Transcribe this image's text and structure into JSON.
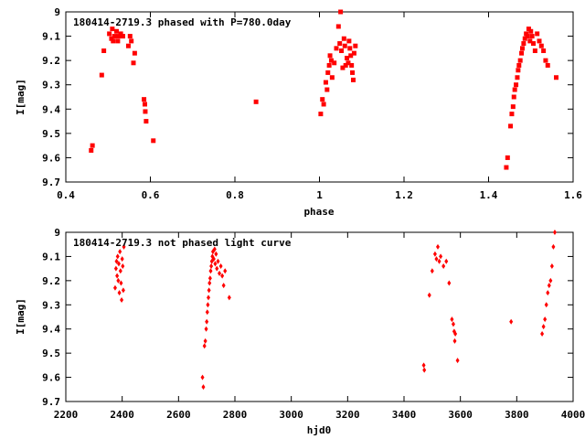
{
  "chart_data": [
    {
      "type": "scatter",
      "title": "180414-2719.3 phased with P=780.0day",
      "xlabel": "phase",
      "ylabel": "I[mag]",
      "xlim": [
        0.4,
        1.6
      ],
      "ylim": [
        9.7,
        9.0
      ],
      "y_inverted": true,
      "x_ticks": [
        "0.4",
        "0.6",
        "0.8",
        "1",
        "1.2",
        "1.4",
        "1.6"
      ],
      "x_tick_values": [
        0.4,
        0.6,
        0.8,
        1.0,
        1.2,
        1.4,
        1.6
      ],
      "y_ticks": [
        "9",
        "9.1",
        "9.2",
        "9.3",
        "9.4",
        "9.5",
        "9.6",
        "9.7"
      ],
      "y_tick_values": [
        9.0,
        9.1,
        9.2,
        9.3,
        9.4,
        9.5,
        9.6,
        9.7
      ],
      "marker": "square",
      "color": "#ff0000",
      "x": [
        0.46,
        0.463,
        0.485,
        0.49,
        0.503,
        0.508,
        0.51,
        0.512,
        0.515,
        0.52,
        0.523,
        0.525,
        0.53,
        0.535,
        0.548,
        0.552,
        0.555,
        0.56,
        0.563,
        0.585,
        0.587,
        0.588,
        0.59,
        0.607,
        0.85,
        1.003,
        1.007,
        1.01,
        1.015,
        1.018,
        1.02,
        1.023,
        1.025,
        1.028,
        1.03,
        1.035,
        1.04,
        1.045,
        1.048,
        1.05,
        1.052,
        1.055,
        1.058,
        1.06,
        1.062,
        1.065,
        1.068,
        1.07,
        1.072,
        1.074,
        1.076,
        1.078,
        1.08,
        1.082,
        1.085,
        1.442,
        1.445,
        1.452,
        1.455,
        1.458,
        1.46,
        1.462,
        1.465,
        1.468,
        1.47,
        1.472,
        1.475,
        1.478,
        1.48,
        1.483,
        1.486,
        1.489,
        1.492,
        1.495,
        1.498,
        1.5,
        1.503,
        1.506,
        1.51,
        1.515,
        1.52,
        1.525,
        1.53,
        1.535,
        1.54,
        1.56
      ],
      "y": [
        9.57,
        9.55,
        9.26,
        9.16,
        9.09,
        9.11,
        9.07,
        9.12,
        9.1,
        9.08,
        9.12,
        9.1,
        9.09,
        9.1,
        9.14,
        9.1,
        9.12,
        9.21,
        9.17,
        9.36,
        9.38,
        9.41,
        9.45,
        9.53,
        9.37,
        9.42,
        9.36,
        9.38,
        9.29,
        9.32,
        9.25,
        9.22,
        9.18,
        9.2,
        9.27,
        9.21,
        9.15,
        9.06,
        9.13,
        9.0,
        9.16,
        9.23,
        9.11,
        9.14,
        9.22,
        9.19,
        9.21,
        9.12,
        9.15,
        9.18,
        9.22,
        9.25,
        9.28,
        9.17,
        9.14,
        9.64,
        9.6,
        9.47,
        9.42,
        9.39,
        9.35,
        9.32,
        9.3,
        9.27,
        9.24,
        9.22,
        9.2,
        9.17,
        9.15,
        9.13,
        9.11,
        9.09,
        9.1,
        9.07,
        9.12,
        9.08,
        9.1,
        9.13,
        9.16,
        9.09,
        9.12,
        9.14,
        9.16,
        9.2,
        9.22,
        9.27
      ]
    },
    {
      "type": "scatter",
      "title": "180414-2719.3 not phased light curve",
      "xlabel": "hjd0",
      "ylabel": "I[mag]",
      "xlim": [
        2200,
        4000
      ],
      "ylim": [
        9.7,
        9.0
      ],
      "y_inverted": true,
      "x_ticks": [
        "2200",
        "2400",
        "2600",
        "2800",
        "3000",
        "3200",
        "3400",
        "3600",
        "3800",
        "4000"
      ],
      "x_tick_values": [
        2200,
        2400,
        2600,
        2800,
        3000,
        3200,
        3400,
        3600,
        3800,
        4000
      ],
      "y_ticks": [
        "9",
        "9.1",
        "9.2",
        "9.3",
        "9.4",
        "9.5",
        "9.6",
        "9.7"
      ],
      "y_tick_values": [
        9.0,
        9.1,
        9.2,
        9.3,
        9.4,
        9.5,
        9.6,
        9.7
      ],
      "marker": "diamond",
      "color": "#ff0000",
      "x": [
        2375,
        2378,
        2380,
        2382,
        2384,
        2386,
        2388,
        2390,
        2392,
        2394,
        2396,
        2398,
        2400,
        2402,
        2404,
        2406,
        2685,
        2688,
        2692,
        2695,
        2698,
        2700,
        2702,
        2704,
        2706,
        2708,
        2710,
        2712,
        2714,
        2716,
        2718,
        2720,
        2722,
        2725,
        2728,
        2730,
        2733,
        2736,
        2740,
        2745,
        2750,
        2755,
        2760,
        2765,
        2780,
        3470,
        3472,
        3490,
        3500,
        3510,
        3515,
        3520,
        3525,
        3530,
        3540,
        3550,
        3560,
        3570,
        3575,
        3578,
        3580,
        3582,
        3590,
        3780,
        3890,
        3895,
        3900,
        3905,
        3910,
        3915,
        3920,
        3925,
        3930,
        3935
      ],
      "y": [
        9.23,
        9.15,
        9.12,
        9.18,
        9.1,
        9.2,
        9.13,
        9.25,
        9.08,
        9.16,
        9.21,
        9.28,
        9.11,
        9.14,
        9.24,
        9.06,
        9.6,
        9.64,
        9.47,
        9.45,
        9.4,
        9.37,
        9.33,
        9.3,
        9.27,
        9.24,
        9.21,
        9.19,
        9.16,
        9.14,
        9.12,
        9.1,
        9.08,
        9.11,
        9.07,
        9.13,
        9.09,
        9.15,
        9.12,
        9.17,
        9.14,
        9.18,
        9.22,
        9.16,
        9.27,
        9.55,
        9.57,
        9.26,
        9.16,
        9.09,
        9.11,
        9.06,
        9.12,
        9.1,
        9.14,
        9.12,
        9.21,
        9.36,
        9.38,
        9.41,
        9.45,
        9.42,
        9.53,
        9.37,
        9.42,
        9.39,
        9.36,
        9.3,
        9.25,
        9.22,
        9.2,
        9.14,
        9.06,
        9.0
      ]
    }
  ]
}
